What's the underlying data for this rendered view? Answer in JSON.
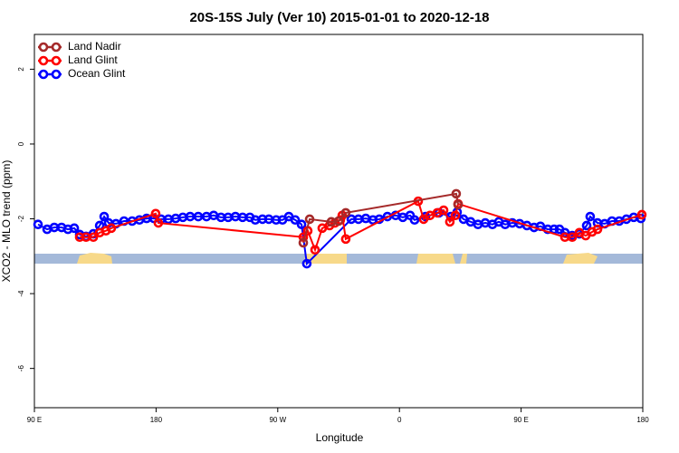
{
  "chart_data": {
    "type": "line",
    "title": "20S-15S July (Ver 10)   2015-01-01 to 2020-12-18",
    "x_label": "Longitude",
    "y_label": "XCO2 - MLO trend (ppm)",
    "xlim": [
      90,
      540
    ],
    "xticks": [
      {
        "value": 90,
        "label": "90 E"
      },
      180,
      {
        "value": 270,
        "label": "90 W"
      },
      {
        "value": 360,
        "label": "0"
      },
      {
        "value": 450,
        "label": "90 E"
      },
      {
        "value": 540,
        "label": "180"
      }
    ],
    "ylim": [
      -7.05,
      2.93
    ],
    "yticks": [
      -6,
      -4,
      -2,
      0,
      2
    ],
    "legend": "top-left",
    "series": [
      {
        "name": "Land Nadir",
        "color": "#a52a2a",
        "x": [
          288.9,
          293.6,
          309.6,
          315,
          320.3,
          402,
          403.4
        ],
        "values": [
          -2.64,
          -2.01,
          -2.08,
          -2.06,
          -1.84,
          -1.33,
          -1.62
        ]
      },
      {
        "name": "Land Glint",
        "color": "#ff0000",
        "x": [
          123.5,
          128.2,
          133.6,
          138.3,
          142.9,
          146.9,
          179.7,
          181.7,
          288.9,
          292.2,
          297.6,
          302.9,
          308.3,
          312.3,
          316.3,
          317.7,
          320.3,
          373.9,
          377.9,
          382.6,
          388,
          392.7,
          397.3,
          401.4,
          403.4,
          482.4,
          487.8,
          493.1,
          497.8,
          502.5,
          506.5,
          539.3
        ],
        "values": [
          -2.49,
          -2.49,
          -2.49,
          -2.37,
          -2.32,
          -2.25,
          -1.86,
          -2.11,
          -2.49,
          -2.32,
          -2.83,
          -2.25,
          -2.18,
          -2.11,
          -2.03,
          -1.91,
          -2.54,
          -1.53,
          -2.01,
          -1.91,
          -1.84,
          -1.77,
          -2.08,
          -1.91,
          -1.6,
          -2.49,
          -2.49,
          -2.37,
          -2.45,
          -2.35,
          -2.28,
          -1.89
        ]
      },
      {
        "name": "Ocean Glint",
        "color": "#0000ff",
        "x": [
          92.7,
          99.4,
          104.7,
          110.1,
          114.8,
          119.5,
          123.5,
          128.2,
          133.6,
          138.3,
          141.6,
          144.9,
          150.3,
          156.3,
          162.3,
          167.7,
          173,
          178.4,
          183.7,
          189.1,
          194.5,
          199.8,
          205.2,
          211.2,
          217.3,
          222.6,
          228,
          233.3,
          238.7,
          244,
          249.4,
          253.4,
          258.7,
          263.4,
          268.8,
          273.5,
          278.2,
          282.9,
          287.6,
          291.5,
          324.4,
          329.7,
          335.1,
          340.4,
          345.1,
          351.1,
          357.2,
          362.5,
          367.9,
          371.2,
          379.3,
          389.3,
          398,
          402.7,
          407.4,
          412.7,
          418.1,
          423.5,
          428.8,
          433.5,
          438.2,
          443.5,
          448.9,
          454.3,
          459.6,
          464.3,
          469.7,
          474.4,
          478.4,
          482.4,
          487.8,
          493.1,
          498.5,
          501.1,
          506.5,
          511.8,
          517.2,
          522.6,
          527.9,
          533.3,
          538.6
        ],
        "values": [
          -2.15,
          -2.28,
          -2.23,
          -2.23,
          -2.28,
          -2.25,
          -2.42,
          -2.47,
          -2.4,
          -2.18,
          -1.94,
          -2.11,
          -2.13,
          -2.06,
          -2.06,
          -2.03,
          -1.99,
          -1.99,
          -2.01,
          -2.01,
          -1.99,
          -1.96,
          -1.94,
          -1.94,
          -1.94,
          -1.91,
          -1.96,
          -1.96,
          -1.94,
          -1.96,
          -1.96,
          -2.03,
          -2.01,
          -2.01,
          -2.03,
          -2.03,
          -1.94,
          -2.03,
          -2.15,
          -3.2,
          -2.01,
          -2.01,
          -1.99,
          -2.03,
          -2.01,
          -1.94,
          -1.91,
          -1.96,
          -1.91,
          -2.03,
          -1.94,
          -1.84,
          -1.94,
          -1.82,
          -2.01,
          -2.08,
          -2.15,
          -2.11,
          -2.15,
          -2.08,
          -2.15,
          -2.11,
          -2.13,
          -2.18,
          -2.23,
          -2.2,
          -2.28,
          -2.28,
          -2.28,
          -2.37,
          -2.45,
          -2.4,
          -2.18,
          -1.94,
          -2.11,
          -2.13,
          -2.06,
          -2.06,
          -2.01,
          -1.96,
          -1.99
        ]
      }
    ]
  }
}
